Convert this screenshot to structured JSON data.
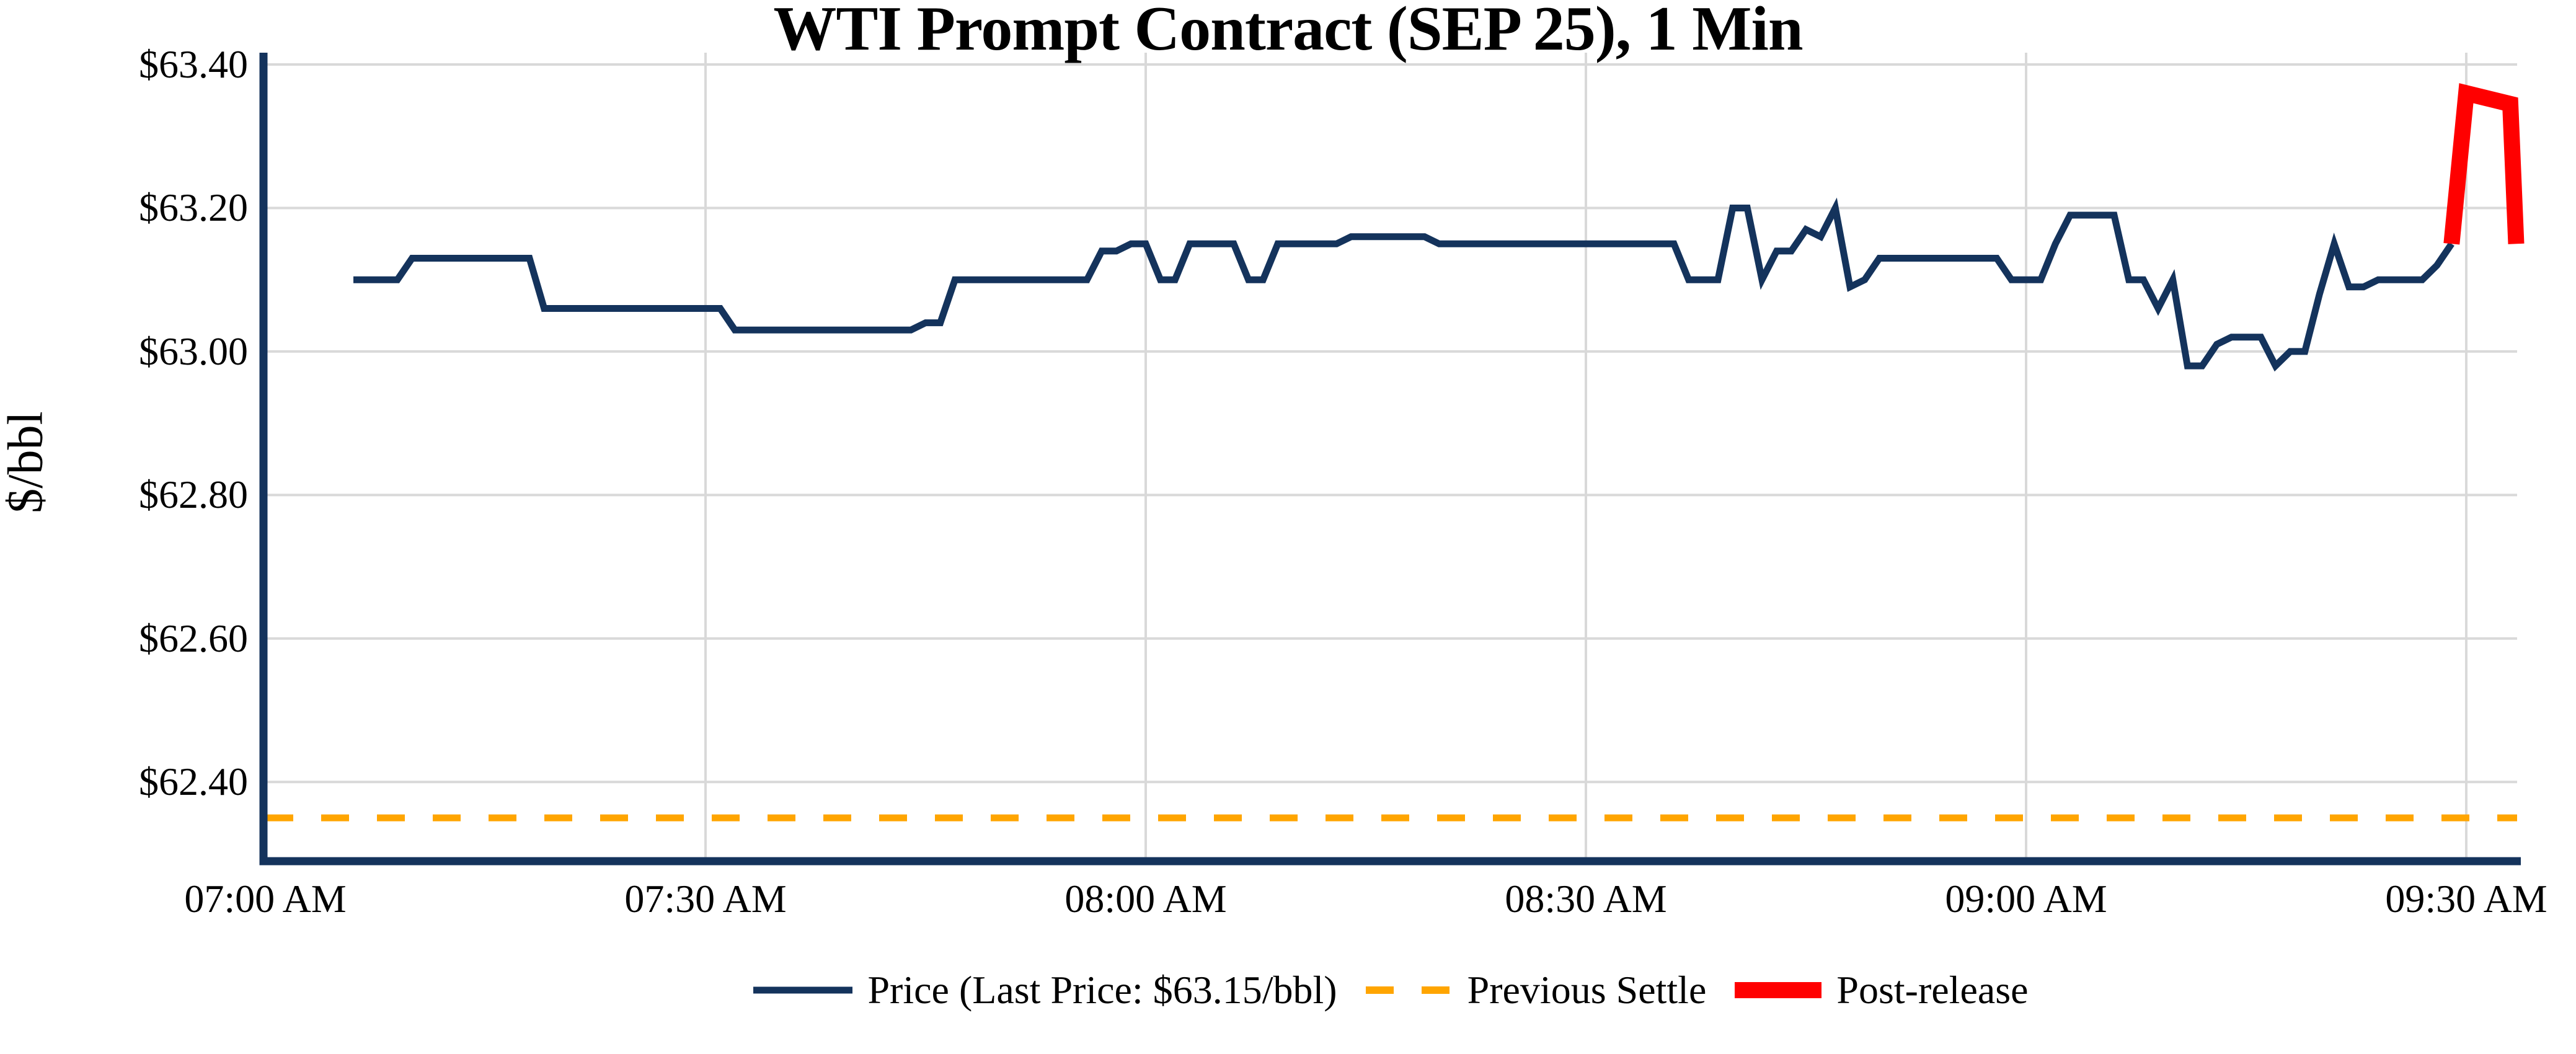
{
  "chart_data": {
    "type": "line",
    "title": "WTI Prompt Contract (SEP 25), 1 Min",
    "ylabel": "$/bbl",
    "xlabel": "",
    "x_axis_kind": "time, minutes after 07:00 AM",
    "xlim_minutes": [
      -0.15,
      153.4
    ],
    "ylim": [
      62.29,
      63.41
    ],
    "grid": true,
    "legend_position": "lower center",
    "x_ticks": [
      {
        "t": 0,
        "label": "07:00 AM"
      },
      {
        "t": 30,
        "label": "07:30 AM"
      },
      {
        "t": 60,
        "label": "08:00 AM"
      },
      {
        "t": 90,
        "label": "08:30 AM"
      },
      {
        "t": 120,
        "label": "09:00 AM"
      },
      {
        "t": 150,
        "label": "09:30 AM"
      }
    ],
    "y_ticks": [
      {
        "v": 63.4,
        "label": "$63.40"
      },
      {
        "v": 63.2,
        "label": "$63.20"
      },
      {
        "v": 63.0,
        "label": "$63.00"
      },
      {
        "v": 62.8,
        "label": "$62.80"
      },
      {
        "v": 62.6,
        "label": "$62.60"
      },
      {
        "v": 62.4,
        "label": "$62.40"
      }
    ],
    "previous_settle": 62.35,
    "last_price": "$63.15/bbl",
    "colors": {
      "price": "#14335c",
      "previous_settle": "#ffa500",
      "post_release": "#ff0000",
      "grid": "#d9d9d9"
    },
    "series": [
      {
        "name": "Price (Last Price: $63.15/bbl)",
        "role": "price",
        "color": "#14335c",
        "stroke_width": 11,
        "points": [
          [
            6,
            63.1
          ],
          [
            7,
            63.1
          ],
          [
            8,
            63.1
          ],
          [
            9,
            63.1
          ],
          [
            10,
            63.13
          ],
          [
            11,
            63.13
          ],
          [
            12,
            63.13
          ],
          [
            13,
            63.13
          ],
          [
            14,
            63.13
          ],
          [
            15,
            63.13
          ],
          [
            16,
            63.13
          ],
          [
            17,
            63.13
          ],
          [
            18,
            63.13
          ],
          [
            19,
            63.06
          ],
          [
            20,
            63.06
          ],
          [
            21,
            63.06
          ],
          [
            22,
            63.06
          ],
          [
            23,
            63.06
          ],
          [
            24,
            63.06
          ],
          [
            25,
            63.06
          ],
          [
            26,
            63.06
          ],
          [
            27,
            63.06
          ],
          [
            28,
            63.06
          ],
          [
            29,
            63.06
          ],
          [
            30,
            63.06
          ],
          [
            31,
            63.06
          ],
          [
            32,
            63.03
          ],
          [
            33,
            63.03
          ],
          [
            34,
            63.03
          ],
          [
            35,
            63.03
          ],
          [
            36,
            63.03
          ],
          [
            37,
            63.03
          ],
          [
            38,
            63.03
          ],
          [
            39,
            63.03
          ],
          [
            40,
            63.03
          ],
          [
            41,
            63.03
          ],
          [
            42,
            63.03
          ],
          [
            43,
            63.03
          ],
          [
            44,
            63.03
          ],
          [
            45,
            63.04
          ],
          [
            46,
            63.04
          ],
          [
            47,
            63.1
          ],
          [
            48,
            63.1
          ],
          [
            49,
            63.1
          ],
          [
            50,
            63.1
          ],
          [
            51,
            63.1
          ],
          [
            52,
            63.1
          ],
          [
            53,
            63.1
          ],
          [
            54,
            63.1
          ],
          [
            55,
            63.1
          ],
          [
            56,
            63.1
          ],
          [
            57,
            63.14
          ],
          [
            58,
            63.14
          ],
          [
            59,
            63.15
          ],
          [
            60,
            63.15
          ],
          [
            61,
            63.1
          ],
          [
            62,
            63.1
          ],
          [
            63,
            63.15
          ],
          [
            64,
            63.15
          ],
          [
            65,
            63.15
          ],
          [
            66,
            63.15
          ],
          [
            67,
            63.1
          ],
          [
            68,
            63.1
          ],
          [
            69,
            63.15
          ],
          [
            70,
            63.15
          ],
          [
            71,
            63.15
          ],
          [
            72,
            63.15
          ],
          [
            73,
            63.15
          ],
          [
            74,
            63.16
          ],
          [
            75,
            63.16
          ],
          [
            76,
            63.16
          ],
          [
            77,
            63.16
          ],
          [
            78,
            63.16
          ],
          [
            79,
            63.16
          ],
          [
            80,
            63.15
          ],
          [
            81,
            63.15
          ],
          [
            82,
            63.15
          ],
          [
            83,
            63.15
          ],
          [
            84,
            63.15
          ],
          [
            85,
            63.15
          ],
          [
            86,
            63.15
          ],
          [
            87,
            63.15
          ],
          [
            88,
            63.15
          ],
          [
            89,
            63.15
          ],
          [
            90,
            63.15
          ],
          [
            91,
            63.15
          ],
          [
            92,
            63.15
          ],
          [
            93,
            63.15
          ],
          [
            94,
            63.15
          ],
          [
            95,
            63.15
          ],
          [
            96,
            63.15
          ],
          [
            97,
            63.1
          ],
          [
            98,
            63.1
          ],
          [
            99,
            63.1
          ],
          [
            100,
            63.2
          ],
          [
            101,
            63.2
          ],
          [
            102,
            63.1
          ],
          [
            103,
            63.14
          ],
          [
            104,
            63.14
          ],
          [
            105,
            63.17
          ],
          [
            106,
            63.16
          ],
          [
            107,
            63.2
          ],
          [
            108,
            63.09
          ],
          [
            109,
            63.1
          ],
          [
            110,
            63.13
          ],
          [
            111,
            63.13
          ],
          [
            112,
            63.13
          ],
          [
            113,
            63.13
          ],
          [
            114,
            63.13
          ],
          [
            115,
            63.13
          ],
          [
            116,
            63.13
          ],
          [
            117,
            63.13
          ],
          [
            118,
            63.13
          ],
          [
            119,
            63.1
          ],
          [
            120,
            63.1
          ],
          [
            121,
            63.1
          ],
          [
            122,
            63.15
          ],
          [
            123,
            63.19
          ],
          [
            124,
            63.19
          ],
          [
            125,
            63.19
          ],
          [
            126,
            63.19
          ],
          [
            127,
            63.1
          ],
          [
            128,
            63.1
          ],
          [
            129,
            63.06
          ],
          [
            130,
            63.1
          ],
          [
            131,
            62.98
          ],
          [
            132,
            62.98
          ],
          [
            133,
            63.01
          ],
          [
            134,
            63.02
          ],
          [
            135,
            63.02
          ],
          [
            136,
            63.02
          ],
          [
            137,
            62.98
          ],
          [
            138,
            63.0
          ],
          [
            139,
            63.0
          ],
          [
            140,
            63.08
          ],
          [
            141,
            63.15
          ],
          [
            142,
            63.09
          ],
          [
            143,
            63.09
          ],
          [
            144,
            63.1
          ],
          [
            145,
            63.1
          ],
          [
            146,
            63.1
          ],
          [
            147,
            63.1
          ],
          [
            148,
            63.12
          ],
          [
            149,
            63.15
          ]
        ]
      },
      {
        "name": "Previous Settle",
        "role": "previous-settle",
        "color": "#ffa500",
        "stroke_width": 11,
        "dash": [
          45,
          45
        ],
        "value": 62.35
      },
      {
        "name": "Post-release",
        "role": "post-release",
        "color": "#ff0000",
        "stroke_width": 26,
        "points": [
          [
            149,
            63.15
          ],
          [
            150,
            63.36
          ],
          [
            151,
            63.355
          ],
          [
            152,
            63.35
          ],
          [
            153,
            63.345
          ],
          [
            153.4,
            63.15
          ]
        ]
      }
    ]
  },
  "legend": {
    "items": [
      {
        "label": "Price (Last Price: $63.15/bbl)",
        "swatch": "navy-line"
      },
      {
        "label": "Previous Settle",
        "swatch": "orange-dashed"
      },
      {
        "label": "Post-release",
        "swatch": "red-thick"
      }
    ]
  }
}
